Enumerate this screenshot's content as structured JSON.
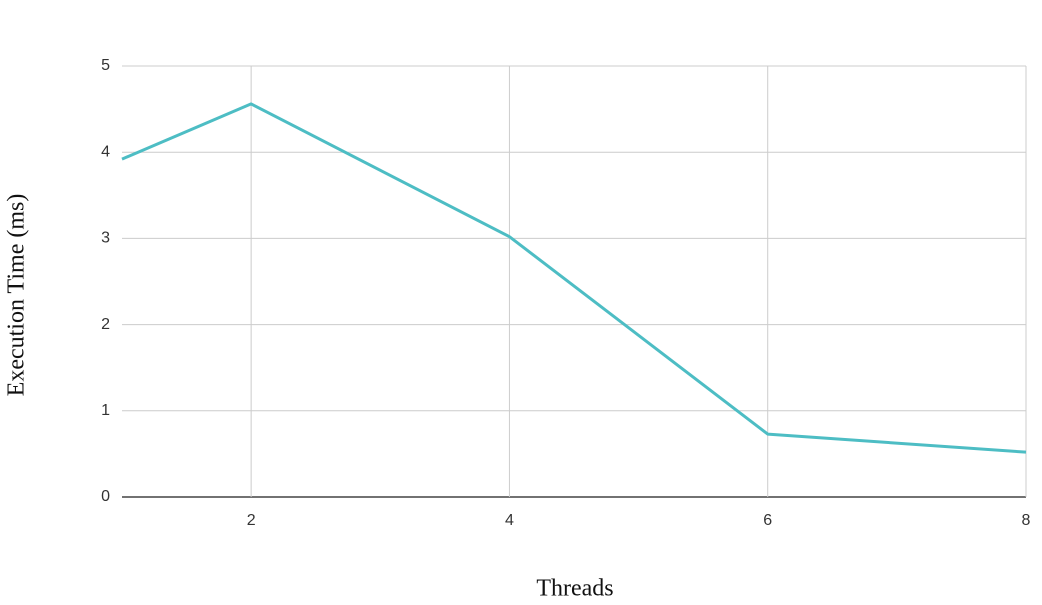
{
  "chart_data": {
    "type": "line",
    "x_label": "Threads",
    "y_label": "Execution Time (ms)",
    "series": [
      {
        "x": [
          1,
          2,
          4,
          6,
          8
        ],
        "values": [
          3.92,
          4.56,
          3.02,
          0.73,
          0.52
        ],
        "color": "#4dbdc4"
      }
    ],
    "xlim": [
      1,
      8
    ],
    "xticks": [
      2,
      4,
      6,
      8
    ],
    "ylim": [
      0,
      5
    ],
    "yticks": [
      0,
      1,
      2,
      3,
      4,
      5
    ],
    "grid": true
  }
}
